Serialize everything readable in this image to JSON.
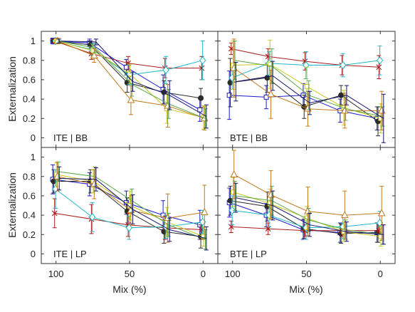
{
  "chart_data": {
    "type": "line",
    "ylabel": "Externalization",
    "xlabel": "Mix (%)",
    "x": [
      100,
      75,
      50,
      25,
      0
    ],
    "x_ticks": [
      "100",
      "50",
      "0"
    ],
    "y_ticks": [
      "0",
      "0.2",
      "0.4",
      "0.6",
      "0.8",
      "1"
    ],
    "xlim": [
      110,
      -10
    ],
    "ylim": [
      -0.1,
      1.1
    ],
    "grid": false,
    "legend": "none",
    "series_colors": [
      "#1a1acc",
      "#2b2b2b",
      "#a81b1b",
      "#1cb8c8",
      "#c8c81c",
      "#c07a1e",
      "#5aa84a",
      "#14146e"
    ],
    "series_markers": [
      "square",
      "circle",
      "x",
      "diamond",
      "square",
      "triangle",
      "none",
      "none"
    ],
    "panels": [
      {
        "label": "ITE | BB",
        "series": [
          {
            "values": [
              1.0,
              0.98,
              0.73,
              0.5,
              0.29
            ],
            "errors": [
              0.03,
              0.04,
              0.08,
              0.15,
              0.12
            ]
          },
          {
            "values": [
              1.0,
              0.96,
              0.57,
              0.47,
              0.41
            ],
            "errors": [
              0.02,
              0.04,
              0.1,
              0.12,
              0.1
            ]
          },
          {
            "values": [
              1.0,
              0.87,
              0.77,
              0.72,
              0.72
            ],
            "errors": [
              0.02,
              0.06,
              0.07,
              0.1,
              0.12
            ]
          },
          {
            "values": [
              1.0,
              0.91,
              0.65,
              0.7,
              0.8
            ],
            "errors": [
              0.02,
              0.06,
              0.1,
              0.14,
              0.2
            ]
          },
          {
            "values": [
              1.0,
              0.9,
              0.66,
              0.3,
              0.21
            ],
            "errors": [
              0.02,
              0.06,
              0.1,
              0.15,
              0.12
            ]
          },
          {
            "values": [
              1.0,
              0.85,
              0.39,
              0.33,
              0.2
            ],
            "errors": [
              0.03,
              0.07,
              0.15,
              0.22,
              0.12
            ]
          },
          {
            "values": [
              1.0,
              0.93,
              0.55,
              0.35,
              0.2
            ],
            "errors": [
              0.02,
              0.05,
              0.12,
              0.15,
              0.1
            ]
          },
          {
            "values": [
              1.0,
              0.99,
              0.58,
              0.44,
              0.22
            ],
            "errors": [
              0.02,
              0.03,
              0.1,
              0.15,
              0.12
            ]
          }
        ]
      },
      {
        "label": "BTE | BB",
        "series": [
          {
            "values": [
              0.44,
              0.42,
              0.44,
              0.28,
              0.2
            ],
            "errors": [
              0.25,
              0.12,
              0.12,
              0.12,
              0.12
            ]
          },
          {
            "values": [
              0.57,
              0.62,
              0.32,
              0.44,
              0.17
            ],
            "errors": [
              0.25,
              0.15,
              0.12,
              0.1,
              0.15
            ]
          },
          {
            "values": [
              0.92,
              0.84,
              0.79,
              0.75,
              0.73
            ],
            "errors": [
              0.06,
              0.08,
              0.09,
              0.1,
              0.12
            ]
          },
          {
            "values": [
              0.62,
              0.77,
              0.75,
              0.75,
              0.8
            ],
            "errors": [
              0.12,
              0.12,
              0.14,
              0.12,
              0.15
            ]
          },
          {
            "values": [
              0.75,
              0.76,
              0.53,
              0.31,
              0.2
            ],
            "errors": [
              0.25,
              0.25,
              0.2,
              0.18,
              0.15
            ]
          },
          {
            "values": [
              0.72,
              0.45,
              0.3,
              0.28,
              0.28
            ],
            "errors": [
              0.3,
              0.25,
              0.18,
              0.18,
              0.2
            ]
          },
          {
            "values": [
              0.8,
              0.74,
              0.44,
              0.3,
              0.22
            ],
            "errors": [
              0.2,
              0.18,
              0.15,
              0.12,
              0.1
            ]
          },
          {
            "values": [
              0.58,
              0.64,
              0.36,
              0.44,
              0.2
            ],
            "errors": [
              0.2,
              0.15,
              0.12,
              0.1,
              0.25
            ]
          }
        ]
      },
      {
        "label": "ITE | LP",
        "series": [
          {
            "values": [
              0.77,
              0.72,
              0.53,
              0.4,
              0.3
            ],
            "errors": [
              0.15,
              0.12,
              0.12,
              0.15,
              0.15
            ]
          },
          {
            "values": [
              0.75,
              0.75,
              0.44,
              0.23,
              0.18
            ],
            "errors": [
              0.12,
              0.12,
              0.14,
              0.12,
              0.12
            ]
          },
          {
            "values": [
              0.42,
              0.36,
              0.3,
              0.27,
              0.25
            ],
            "errors": [
              0.15,
              0.15,
              0.12,
              0.12,
              0.1
            ]
          },
          {
            "values": [
              0.67,
              0.38,
              0.27,
              0.28,
              0.33
            ],
            "errors": [
              0.2,
              0.15,
              0.12,
              0.12,
              0.12
            ]
          },
          {
            "values": [
              0.82,
              0.75,
              0.5,
              0.33,
              0.18
            ],
            "errors": [
              0.12,
              0.12,
              0.15,
              0.15,
              0.1
            ]
          },
          {
            "values": [
              0.8,
              0.72,
              0.45,
              0.37,
              0.43
            ],
            "errors": [
              0.15,
              0.15,
              0.15,
              0.25,
              0.28
            ]
          },
          {
            "values": [
              0.85,
              0.8,
              0.55,
              0.3,
              0.15
            ],
            "errors": [
              0.1,
              0.1,
              0.12,
              0.12,
              0.1
            ]
          },
          {
            "values": [
              0.78,
              0.77,
              0.46,
              0.25,
              0.16
            ],
            "errors": [
              0.12,
              0.12,
              0.15,
              0.12,
              0.12
            ]
          }
        ]
      },
      {
        "label": "BTE | LP",
        "series": [
          {
            "values": [
              0.53,
              0.4,
              0.25,
              0.22,
              0.22
            ],
            "errors": [
              0.15,
              0.12,
              0.1,
              0.1,
              0.1
            ]
          },
          {
            "values": [
              0.55,
              0.49,
              0.26,
              0.21,
              0.22
            ],
            "errors": [
              0.15,
              0.15,
              0.1,
              0.1,
              0.1
            ]
          },
          {
            "values": [
              0.28,
              0.26,
              0.24,
              0.24,
              0.24
            ],
            "errors": [
              0.06,
              0.06,
              0.06,
              0.06,
              0.06
            ]
          },
          {
            "values": [
              0.45,
              0.4,
              0.27,
              0.28,
              0.32
            ],
            "errors": [
              0.15,
              0.12,
              0.12,
              0.12,
              0.12
            ]
          },
          {
            "values": [
              0.64,
              0.52,
              0.37,
              0.23,
              0.18
            ],
            "errors": [
              0.15,
              0.15,
              0.12,
              0.1,
              0.1
            ]
          },
          {
            "values": [
              0.82,
              0.61,
              0.44,
              0.4,
              0.42
            ],
            "errors": [
              0.25,
              0.25,
              0.25,
              0.25,
              0.28
            ]
          },
          {
            "values": [
              0.6,
              0.55,
              0.35,
              0.25,
              0.2
            ],
            "errors": [
              0.15,
              0.15,
              0.12,
              0.1,
              0.1
            ]
          },
          {
            "values": [
              0.58,
              0.5,
              0.3,
              0.23,
              0.2
            ],
            "errors": [
              0.15,
              0.15,
              0.12,
              0.1,
              0.1
            ]
          }
        ]
      }
    ]
  }
}
